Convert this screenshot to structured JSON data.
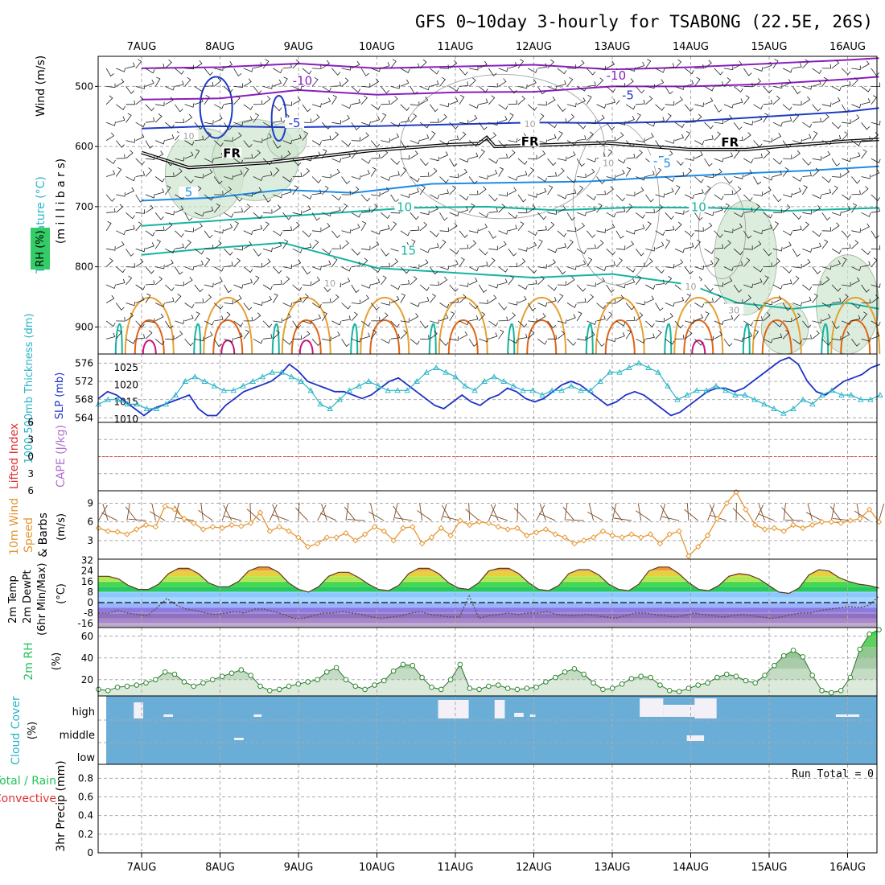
{
  "title": "GFS 0~10day 3-hourly for TSABONG (22.5E, 26S)",
  "colors": {
    "grid": "#aaaaaa",
    "purple": "#8a1ebe",
    "blue": "#1e3cc8",
    "lightblue": "#1e8ce6",
    "teal": "#14b4a0",
    "green": "#22c35a",
    "orange": "#e6a032",
    "darkorange": "#e06414",
    "magenta": "#c8147a",
    "gray": "#a0a0a0",
    "black": "#000000",
    "rh_fill": "#cfe6cf",
    "slp": "#1e32c8",
    "thickness": "#28b4c8",
    "li_line": "#e05050",
    "wind10": "#e69632",
    "barb_brown": "#7a4a28",
    "rh2m_fill": "#c8dcc8",
    "rh2m_line": "#2a8a2a",
    "cloud_bg": "#6aaed8",
    "cloud_clear": "#f4f0f8",
    "precip_label_green": "#22c35a",
    "precip_label_red": "#e03030",
    "axis_label_orange": "#e69632",
    "axis_label_purple": "#b070d0",
    "axis_label_teal": "#28b4c8",
    "axis_label_blue": "#1e32c8",
    "axis_label_red": "#e03030"
  },
  "x_axis": {
    "dates": [
      "7AUG",
      "8AUG",
      "9AUG",
      "10AUG",
      "11AUG",
      "12AUG",
      "13AUG",
      "14AUG",
      "15AUG",
      "16AUG"
    ]
  },
  "chart_data": [
    {
      "id": "upper",
      "type": "line",
      "ylabel_parts": [
        "Temperature (°C)",
        "Wind (m/s)"
      ],
      "ylabel2": "(m i l l i b a r s)",
      "rh_label": "RH (%)",
      "y_ticks": [
        "500",
        "600",
        "700",
        "800",
        "900"
      ],
      "ylim": [
        450,
        945
      ],
      "contour_labels": [
        "-10",
        "-10",
        "-5",
        "-5",
        "FR",
        "FR",
        "FR",
        "-5",
        "5",
        "5",
        "10",
        "10",
        "15",
        "10",
        "10",
        "10",
        "10",
        "10",
        "30"
      ],
      "series": [
        {
          "name": "-10",
          "color": "purple",
          "values": [
            [
              0,
              470
            ],
            [
              1,
              468
            ],
            [
              2,
              462
            ],
            [
              3,
              470
            ],
            [
              4,
              467
            ],
            [
              5,
              464
            ],
            [
              6,
              472
            ],
            [
              7,
              468
            ],
            [
              8,
              462
            ],
            [
              9,
              456
            ],
            [
              9.4,
              453
            ]
          ]
        },
        {
          "name": "-5",
          "color": "purple",
          "values": [
            [
              0,
              522
            ],
            [
              1,
              520
            ],
            [
              2,
              506
            ],
            [
              3,
              514
            ],
            [
              4,
              510
            ],
            [
              5,
              509
            ],
            [
              6,
              500
            ],
            [
              7,
              500
            ],
            [
              8,
              496
            ],
            [
              9,
              488
            ],
            [
              9.4,
              484
            ]
          ]
        },
        {
          "name": "-5",
          "color": "blue",
          "values": [
            [
              0,
              570
            ],
            [
              0.9,
              566
            ],
            [
              1.9,
              568
            ],
            [
              3,
              566
            ],
            [
              4,
              563
            ],
            [
              5,
              560
            ],
            [
              6,
              561
            ],
            [
              7,
              558
            ],
            [
              8,
              550
            ],
            [
              9,
              542
            ],
            [
              9.4,
              536
            ]
          ]
        },
        {
          "name": "FR",
          "color": "black",
          "values": [
            [
              0,
              610
            ],
            [
              0.6,
              635
            ],
            [
              1.6,
              627
            ],
            [
              2.9,
              607
            ],
            [
              3.9,
              597
            ],
            [
              4.3,
              595
            ],
            [
              4.4,
              585
            ],
            [
              4.5,
              600
            ],
            [
              5,
              598
            ],
            [
              5.9,
              594
            ],
            [
              6.5,
              600
            ],
            [
              7,
              605
            ],
            [
              7.7,
              605
            ],
            [
              8.3,
              598
            ],
            [
              9,
              591
            ],
            [
              9.4,
              588
            ]
          ]
        },
        {
          "name": "5",
          "color": "lightblue",
          "values": [
            [
              0,
              690
            ],
            [
              0.9,
              685
            ],
            [
              1.8,
              672
            ],
            [
              2.7,
              677
            ],
            [
              3.7,
              662
            ],
            [
              4.7,
              660
            ],
            [
              5.7,
              658
            ],
            [
              6.6,
              651
            ],
            [
              7.6,
              645
            ],
            [
              8.5,
              640
            ],
            [
              9.4,
              633
            ]
          ]
        },
        {
          "name": "10",
          "color": "teal",
          "values": [
            [
              0,
              732
            ],
            [
              1.1,
              722
            ],
            [
              2.3,
              712
            ],
            [
              3.4,
              702
            ],
            [
              4.4,
              700
            ],
            [
              5.3,
              706
            ],
            [
              6.3,
              701
            ],
            [
              7.3,
              702
            ],
            [
              8.2,
              707
            ],
            [
              9.4,
              702
            ]
          ]
        },
        {
          "name": "15",
          "color": "teal",
          "values": [
            [
              0,
              780
            ],
            [
              0.8,
              770
            ],
            [
              1.8,
              760
            ],
            [
              3,
              802
            ],
            [
              4,
              810
            ],
            [
              5,
              818
            ],
            [
              6,
              812
            ],
            [
              7,
              830
            ],
            [
              7.6,
              860
            ],
            [
              8.3,
              870
            ],
            [
              9,
              860
            ],
            [
              9.4,
              870
            ]
          ]
        }
      ]
    },
    {
      "id": "slp_thickness",
      "type": "line",
      "ylabel_left": "1000-500mb Thickness (dm)",
      "ylabel_right": "SLP (mb)",
      "thickness_ticks": [
        "576",
        "572",
        "568",
        "564"
      ],
      "slp_ticks": [
        "1025",
        "1020",
        "1015",
        "1010"
      ],
      "thickness_ylim": [
        563,
        578
      ],
      "slp_ylim": [
        1009,
        1029
      ],
      "series": [
        {
          "name": "SLP",
          "color": "slp",
          "values": [
            1016,
            1018,
            1017,
            1015,
            1013,
            1011,
            1013,
            1014,
            1015,
            1016,
            1017,
            1013,
            1011,
            1011,
            1014,
            1016,
            1018,
            1019,
            1020,
            1021,
            1023,
            1026,
            1024,
            1021,
            1020,
            1019,
            1018,
            1018,
            1017,
            1016,
            1017,
            1019,
            1021,
            1022,
            1020,
            1018,
            1016,
            1014,
            1013,
            1015,
            1017,
            1015,
            1014,
            1016,
            1017,
            1019,
            1018,
            1016,
            1015,
            1016,
            1018,
            1020,
            1021,
            1020,
            1018,
            1016,
            1014,
            1015,
            1017,
            1018,
            1017,
            1015,
            1013,
            1011,
            1012,
            1014,
            1016,
            1018,
            1019,
            1019,
            1018,
            1019,
            1021,
            1023,
            1025,
            1027,
            1028,
            1026,
            1021,
            1018,
            1017,
            1019,
            1021,
            1022,
            1023,
            1025,
            1026
          ]
        },
        {
          "name": "Thickness",
          "color": "thickness",
          "values": [
            567,
            568,
            568,
            567,
            567,
            566,
            566,
            567,
            569,
            572,
            573,
            572,
            571,
            570,
            570,
            571,
            572,
            573,
            574,
            574,
            573,
            572,
            570,
            567,
            566,
            568,
            570,
            571,
            572,
            571,
            570,
            570,
            570,
            572,
            574,
            575,
            574,
            573,
            571,
            570,
            572,
            573,
            572,
            571,
            570,
            570,
            569,
            570,
            570,
            571,
            570,
            570,
            572,
            574,
            574,
            575,
            576,
            575,
            574,
            571,
            568,
            569,
            570,
            570,
            571,
            570,
            569,
            569,
            568,
            567,
            566,
            565,
            566,
            568,
            567,
            569,
            570,
            569,
            569,
            568,
            568,
            569
          ]
        }
      ]
    },
    {
      "id": "cape_li",
      "type": "line",
      "ylabel_left": "Lifted Index",
      "ylabel_right": "CAPE (J/kg)",
      "y_ticks": [
        "6",
        "3",
        "0",
        "3",
        "6"
      ],
      "ylim": [
        -6,
        6
      ],
      "series": [
        {
          "name": "Lifted Index",
          "color": "li_line",
          "values": [
            0,
            0
          ]
        }
      ]
    },
    {
      "id": "wind10m",
      "type": "line",
      "ylabel": "10m Wind Speed & Barbs (m/s)",
      "ylabel_parts": [
        "10m Wind",
        "Speed",
        "& Barbs"
      ],
      "unit": "(m/s)",
      "y_ticks": [
        "9",
        "6",
        "3"
      ],
      "ylim": [
        0,
        11
      ],
      "series": [
        {
          "name": "Speed",
          "color": "wind10",
          "values": [
            5,
            4.5,
            4.4,
            4,
            4.8,
            5.5,
            5.2,
            8.5,
            8,
            6.5,
            5.8,
            4.8,
            5.2,
            5,
            5.5,
            5.3,
            5.8,
            7.5,
            4.5,
            5.2,
            4.5,
            3.5,
            2,
            2.5,
            3.5,
            3.5,
            4.2,
            3,
            4,
            5.2,
            4.5,
            3,
            5,
            5.2,
            2.5,
            3.5,
            5,
            3.8,
            6.2,
            5.5,
            6,
            5.8,
            5.2,
            4.8,
            5,
            3.8,
            4.3,
            4.8,
            4,
            3.5,
            2.5,
            3,
            3.5,
            4.5,
            3.8,
            3.5,
            4,
            3.5,
            4,
            2.5,
            4,
            4.5,
            0.5,
            2,
            3.8,
            6.5,
            9,
            10.8,
            8,
            5.5,
            4.8,
            5,
            4.5,
            5.5,
            5,
            5.5,
            6,
            6,
            5.8,
            6.2,
            6.5,
            8,
            6
          ]
        }
      ]
    },
    {
      "id": "temp2m",
      "type": "line",
      "ylabel_parts": [
        "2m Temp",
        "2m DewPt",
        "(6hr Min/Max)"
      ],
      "unit": "(°C)",
      "y_ticks": [
        "32",
        "24",
        "16",
        "8",
        "0",
        "-8",
        "-16"
      ],
      "ylim": [
        -19,
        33
      ],
      "series": [
        {
          "name": "Temp",
          "color": "darkorange",
          "values": [
            20,
            20,
            18,
            13,
            10,
            10,
            14,
            22,
            26,
            26,
            22,
            15,
            12,
            12,
            16,
            24,
            27,
            27,
            23,
            15,
            10,
            8,
            12,
            20,
            23,
            23,
            19,
            14,
            10,
            9,
            13,
            22,
            26,
            26,
            22,
            15,
            11,
            10,
            15,
            24,
            26,
            26,
            22,
            15,
            10,
            9,
            13,
            22,
            25,
            25,
            21,
            14,
            10,
            9,
            14,
            24,
            27,
            27,
            22,
            15,
            10,
            9,
            13,
            20,
            22,
            21,
            18,
            13,
            8,
            7,
            11,
            21,
            25,
            24,
            19,
            16,
            14,
            13,
            11
          ]
        },
        {
          "name": "DewPt",
          "color": "barb_brown",
          "values": [
            -8,
            -8,
            -6,
            -8,
            -9,
            -10,
            -4,
            3,
            -2,
            -5,
            -6,
            -8,
            -9,
            -8,
            -7,
            -8,
            -5,
            -5,
            -7,
            -9,
            -12,
            -12,
            -10,
            -8,
            -8,
            -7,
            -8,
            -9,
            -11,
            -12,
            -11,
            -10,
            -8,
            -7,
            -9,
            -10,
            -11,
            -11,
            5,
            -12,
            -10,
            -9,
            -8,
            -9,
            -8,
            -8,
            -7,
            -9,
            -10,
            -10,
            -9,
            -10,
            -11,
            -12,
            -10,
            -8,
            -8,
            -9,
            -10,
            -11,
            -10,
            -8,
            -9,
            -10,
            -11,
            -10,
            -9,
            -10,
            -11,
            -12,
            -11,
            -9,
            -8,
            -8,
            -6,
            -5,
            -4,
            -3,
            -4,
            -2,
            5
          ]
        }
      ]
    },
    {
      "id": "rh2m",
      "type": "area",
      "ylabel": "2m RH",
      "unit": "(%)",
      "y_ticks": [
        "60",
        "40",
        "20"
      ],
      "ylim": [
        5,
        68
      ],
      "series": [
        {
          "name": "RH",
          "color": "rh2m_line",
          "values": [
            11,
            10,
            13,
            14,
            15,
            17,
            20,
            27,
            25,
            18,
            14,
            17,
            20,
            23,
            26,
            29,
            24,
            14,
            10,
            11,
            14,
            16,
            18,
            20,
            27,
            31,
            20,
            14,
            11,
            15,
            19,
            28,
            34,
            33,
            22,
            13,
            11,
            20,
            34,
            12,
            11,
            14,
            15,
            12,
            11,
            12,
            13,
            18,
            22,
            27,
            30,
            25,
            17,
            11,
            12,
            16,
            21,
            23,
            22,
            15,
            10,
            9,
            12,
            15,
            17,
            22,
            25,
            23,
            19,
            17,
            24,
            33,
            42,
            47,
            41,
            24,
            10,
            8,
            10,
            22,
            48,
            62,
            66
          ]
        }
      ]
    },
    {
      "id": "cloud",
      "type": "heatmap",
      "ylabel": "Cloud Cover",
      "unit": "(%)",
      "y_ticks": [
        "high",
        "middle",
        "low"
      ]
    },
    {
      "id": "precip",
      "type": "bar",
      "ylabel_left": [
        "Total / Rain",
        "Convective"
      ],
      "ylabel_right": "3hr Precip (mm)",
      "y_ticks": [
        "0.8",
        "0.6",
        "0.4",
        "0.2",
        "0"
      ],
      "ylim": [
        0,
        0.95
      ],
      "run_total": "Run Total = 0",
      "values": []
    }
  ]
}
